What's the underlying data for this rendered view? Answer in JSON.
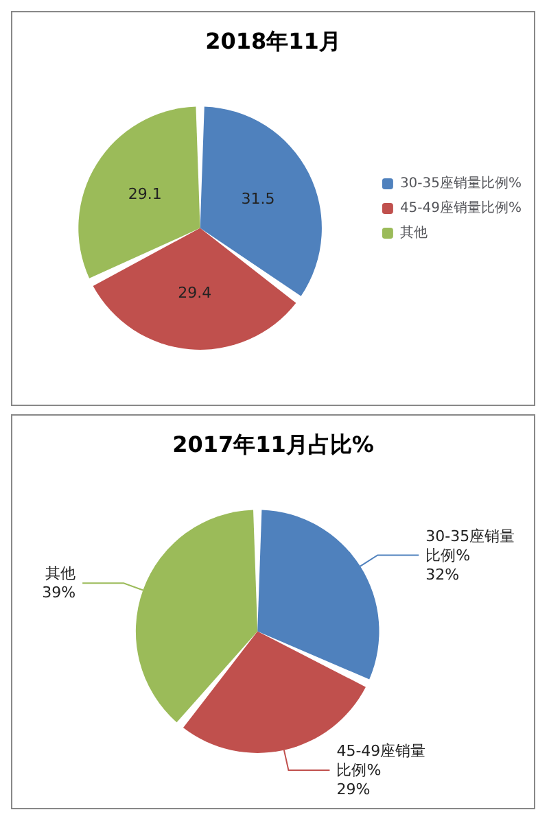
{
  "chart_data": [
    {
      "type": "pie",
      "title": "2018年11月",
      "categories": [
        "30-35座销量比例%",
        "45-49座销量比例%",
        "其他"
      ],
      "values": [
        31.5,
        29.4,
        29.1
      ],
      "colors": [
        "#4f81bd",
        "#c0504d",
        "#9bbb59"
      ],
      "data_labels": true,
      "legend": "right"
    },
    {
      "type": "pie",
      "title": "2017年11月占比%",
      "categories": [
        "30-35座销量比例%",
        "45-49座销量比例%",
        "其他"
      ],
      "values": [
        32,
        29,
        39
      ],
      "colors": [
        "#4f81bd",
        "#c0504d",
        "#9bbb59"
      ],
      "value_labels": [
        "32%",
        "29%",
        "39%"
      ],
      "legend": false
    }
  ]
}
